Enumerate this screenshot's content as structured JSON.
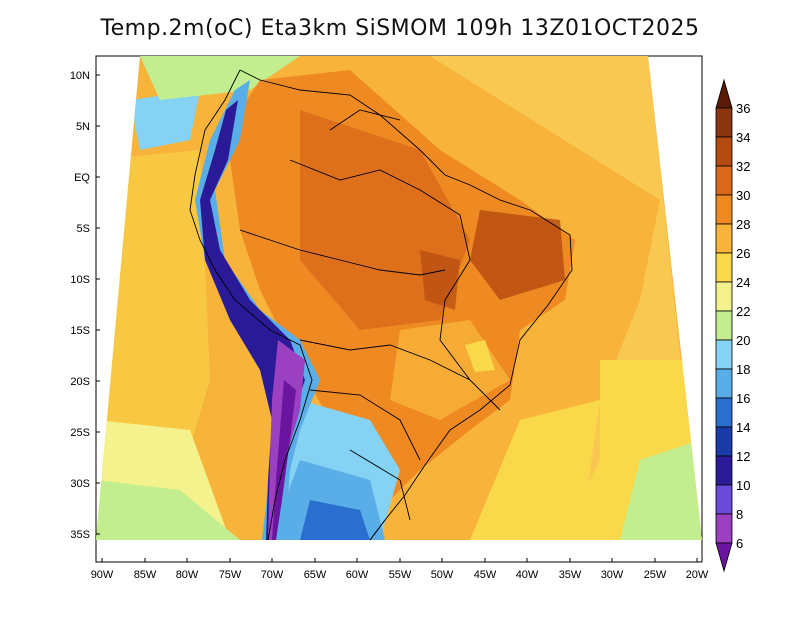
{
  "title": "Temp.2m(oC) Eta3km SiSMOM 109h 13Z01OCT2025",
  "lat_labels": [
    "10N",
    "5N",
    "EQ",
    "5S",
    "10S",
    "15S",
    "20S",
    "25S",
    "30S",
    "35S"
  ],
  "lon_labels": [
    "90W",
    "85W",
    "80W",
    "75W",
    "70W",
    "65W",
    "60W",
    "55W",
    "50W",
    "45W",
    "40W",
    "35W",
    "30W",
    "25W",
    "20W"
  ],
  "colorbar": {
    "labels": [
      "36",
      "34",
      "32",
      "30",
      "28",
      "26",
      "24",
      "22",
      "20",
      "18",
      "16",
      "14",
      "12",
      "10",
      "8",
      "6"
    ],
    "colors": [
      "#5a1a08",
      "#8a3410",
      "#b54a10",
      "#d9681a",
      "#ef8a22",
      "#f7b33a",
      "#f9d94a",
      "#f4f28c",
      "#c2ee90",
      "#86d2f4",
      "#5aaee8",
      "#2a6fd0",
      "#1a3aa8",
      "#2a1a98",
      "#6a4ad8",
      "#9a40c0",
      "#6a14a0"
    ]
  }
}
